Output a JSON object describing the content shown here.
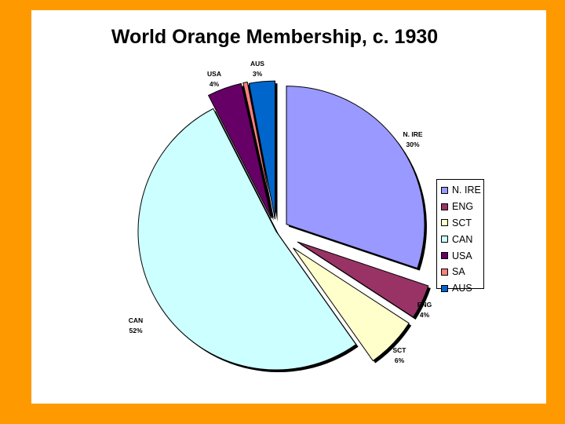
{
  "chart_data": {
    "type": "pie",
    "title": "World Orange Membership, c. 1930",
    "exploded": true,
    "legend_position": "right",
    "slices": [
      {
        "name": "N. IRE",
        "value": 30,
        "label": "30%",
        "color": "#9999FF"
      },
      {
        "name": "ENG",
        "value": 4,
        "label": "4%",
        "color": "#993366"
      },
      {
        "name": "SCT",
        "value": 6,
        "label": "6%",
        "color": "#FFFFCC"
      },
      {
        "name": "CAN",
        "value": 52,
        "label": "52%",
        "color": "#CCFFFF"
      },
      {
        "name": "USA",
        "value": 4,
        "label": "4%",
        "color": "#660066"
      },
      {
        "name": "SA",
        "value": 0.5,
        "label": "",
        "color": "#FF8080"
      },
      {
        "name": "AUS",
        "value": 3,
        "label": "3%",
        "color": "#0066CC"
      }
    ]
  },
  "theme": {
    "background": "#FF9900",
    "slide": "#FFFFFF"
  }
}
